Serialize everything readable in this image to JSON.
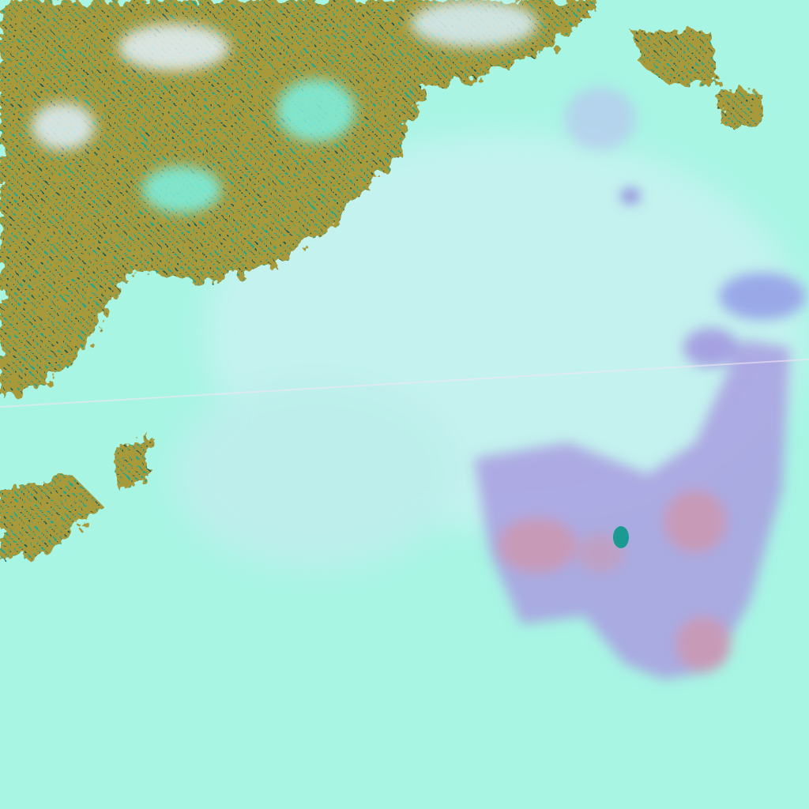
{
  "image": {
    "kind": "false-color satellite scene",
    "colors": {
      "background": "#a8f5e4",
      "haze": "#c9f4f0",
      "land": "#a89a3a",
      "land_edge": "#1aa890",
      "cloud_violet": "#a99ee0",
      "cloud_pink": "#c79ab8",
      "cyan_bright": "#5ff0e0"
    }
  }
}
